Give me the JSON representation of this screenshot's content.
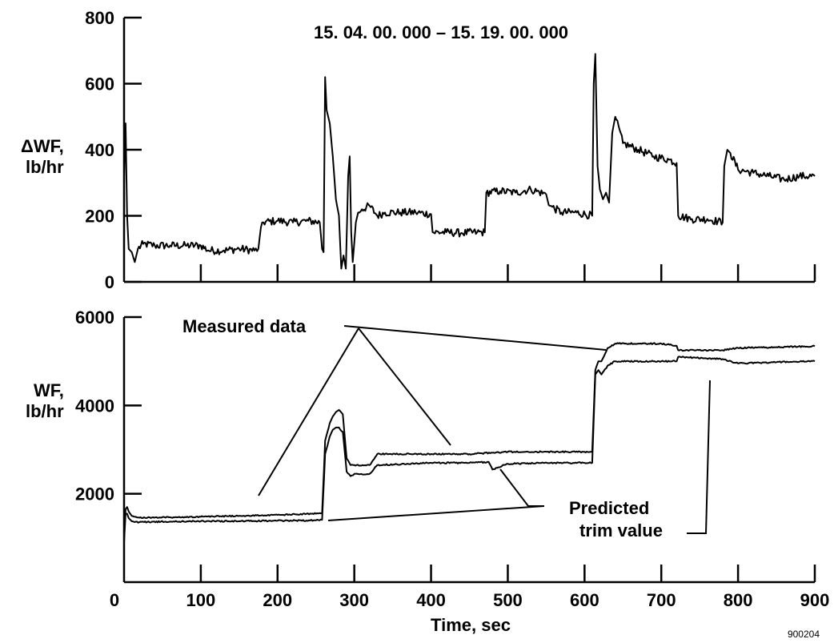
{
  "chart_data": [
    {
      "type": "line",
      "title": "15. 04. 00. 000 – 15. 19. 00. 000",
      "ylabel_line1": "ΔWF,",
      "ylabel_line2": "lb/hr",
      "xlim": [
        0,
        900
      ],
      "ylim": [
        0,
        800
      ],
      "yticks": [
        0,
        200,
        400,
        600,
        800
      ],
      "xticks": [
        0,
        100,
        200,
        300,
        400,
        500,
        600,
        700,
        800,
        900
      ],
      "grid": false,
      "series": [
        {
          "noise": 12,
          "x": [
            0,
            2,
            4,
            6,
            10,
            14,
            18,
            25,
            40,
            60,
            80,
            100,
            110,
            130,
            150,
            170,
            175,
            180,
            200,
            220,
            240,
            255,
            258,
            260,
            262,
            264,
            268,
            272,
            276,
            280,
            283,
            286,
            289,
            292,
            294,
            296,
            298,
            300,
            302,
            305,
            310,
            320,
            330,
            340,
            360,
            380,
            400,
            402,
            420,
            440,
            460,
            470,
            472,
            490,
            510,
            530,
            550,
            555,
            570,
            590,
            610,
            612,
            614,
            617,
            620,
            624,
            628,
            632,
            636,
            640,
            650,
            670,
            690,
            710,
            720,
            722,
            740,
            760,
            780,
            782,
            786,
            790,
            800,
            820,
            840,
            860,
            880,
            900
          ],
          "y": [
            300,
            480,
            200,
            100,
            90,
            60,
            100,
            115,
            110,
            110,
            110,
            110,
            95,
            95,
            100,
            95,
            100,
            180,
            185,
            180,
            185,
            180,
            100,
            90,
            620,
            520,
            480,
            380,
            250,
            200,
            40,
            80,
            40,
            320,
            380,
            150,
            60,
            120,
            180,
            210,
            220,
            230,
            200,
            210,
            210,
            210,
            205,
            150,
            150,
            148,
            150,
            150,
            270,
            275,
            270,
            280,
            265,
            230,
            210,
            210,
            200,
            600,
            690,
            350,
            280,
            250,
            270,
            240,
            450,
            500,
            420,
            400,
            380,
            370,
            360,
            200,
            190,
            190,
            180,
            350,
            400,
            390,
            340,
            330,
            320,
            310,
            320,
            320
          ]
        }
      ]
    },
    {
      "type": "line",
      "ylabel_line1": "WF,",
      "ylabel_line2": "lb/hr",
      "xlabel": "Time, sec",
      "xlim": [
        0,
        900
      ],
      "ylim": [
        0,
        6000
      ],
      "yticks": [
        2000,
        4000,
        6000
      ],
      "xticks": [
        0,
        100,
        200,
        300,
        400,
        500,
        600,
        700,
        800,
        900
      ],
      "grid": false,
      "series": [
        {
          "noise": 15,
          "x": [
            0,
            2,
            4,
            6,
            10,
            14,
            20,
            60,
            100,
            150,
            200,
            250,
            258,
            262,
            268,
            272,
            276,
            280,
            285,
            290,
            295,
            300,
            320,
            330,
            400,
            450,
            480,
            500,
            560,
            600,
            610,
            614,
            618,
            622,
            630,
            640,
            700,
            720,
            722,
            780,
            800,
            850,
            900
          ],
          "y": [
            1000,
            1650,
            1700,
            1600,
            1500,
            1480,
            1460,
            1470,
            1480,
            1500,
            1520,
            1550,
            1560,
            3200,
            3600,
            3750,
            3850,
            3900,
            3800,
            2800,
            2650,
            2650,
            2650,
            2900,
            2900,
            2900,
            2930,
            2950,
            2950,
            2950,
            2950,
            4800,
            5000,
            5000,
            5300,
            5400,
            5400,
            5350,
            5250,
            5250,
            5300,
            5320,
            5340
          ]
        },
        {
          "noise": 15,
          "x": [
            0,
            2,
            4,
            6,
            10,
            14,
            20,
            60,
            100,
            150,
            200,
            250,
            258,
            262,
            268,
            272,
            276,
            280,
            285,
            290,
            295,
            300,
            320,
            330,
            400,
            450,
            475,
            480,
            500,
            560,
            600,
            610,
            614,
            618,
            622,
            630,
            640,
            700,
            720,
            722,
            780,
            800,
            850,
            900
          ],
          "y": [
            900,
            1550,
            1550,
            1450,
            1380,
            1360,
            1360,
            1370,
            1380,
            1380,
            1390,
            1400,
            1410,
            2900,
            3300,
            3450,
            3500,
            3500,
            3400,
            2500,
            2400,
            2450,
            2450,
            2650,
            2700,
            2700,
            2720,
            2550,
            2680,
            2700,
            2700,
            2700,
            4700,
            4800,
            4700,
            4900,
            5000,
            5000,
            5000,
            5100,
            5050,
            4950,
            4980,
            5000
          ]
        }
      ],
      "annotations": [
        {
          "text": "Measured data"
        },
        {
          "text_line1": "Predicted",
          "text_line2": "trim value"
        }
      ]
    }
  ],
  "figure_id": "900204"
}
